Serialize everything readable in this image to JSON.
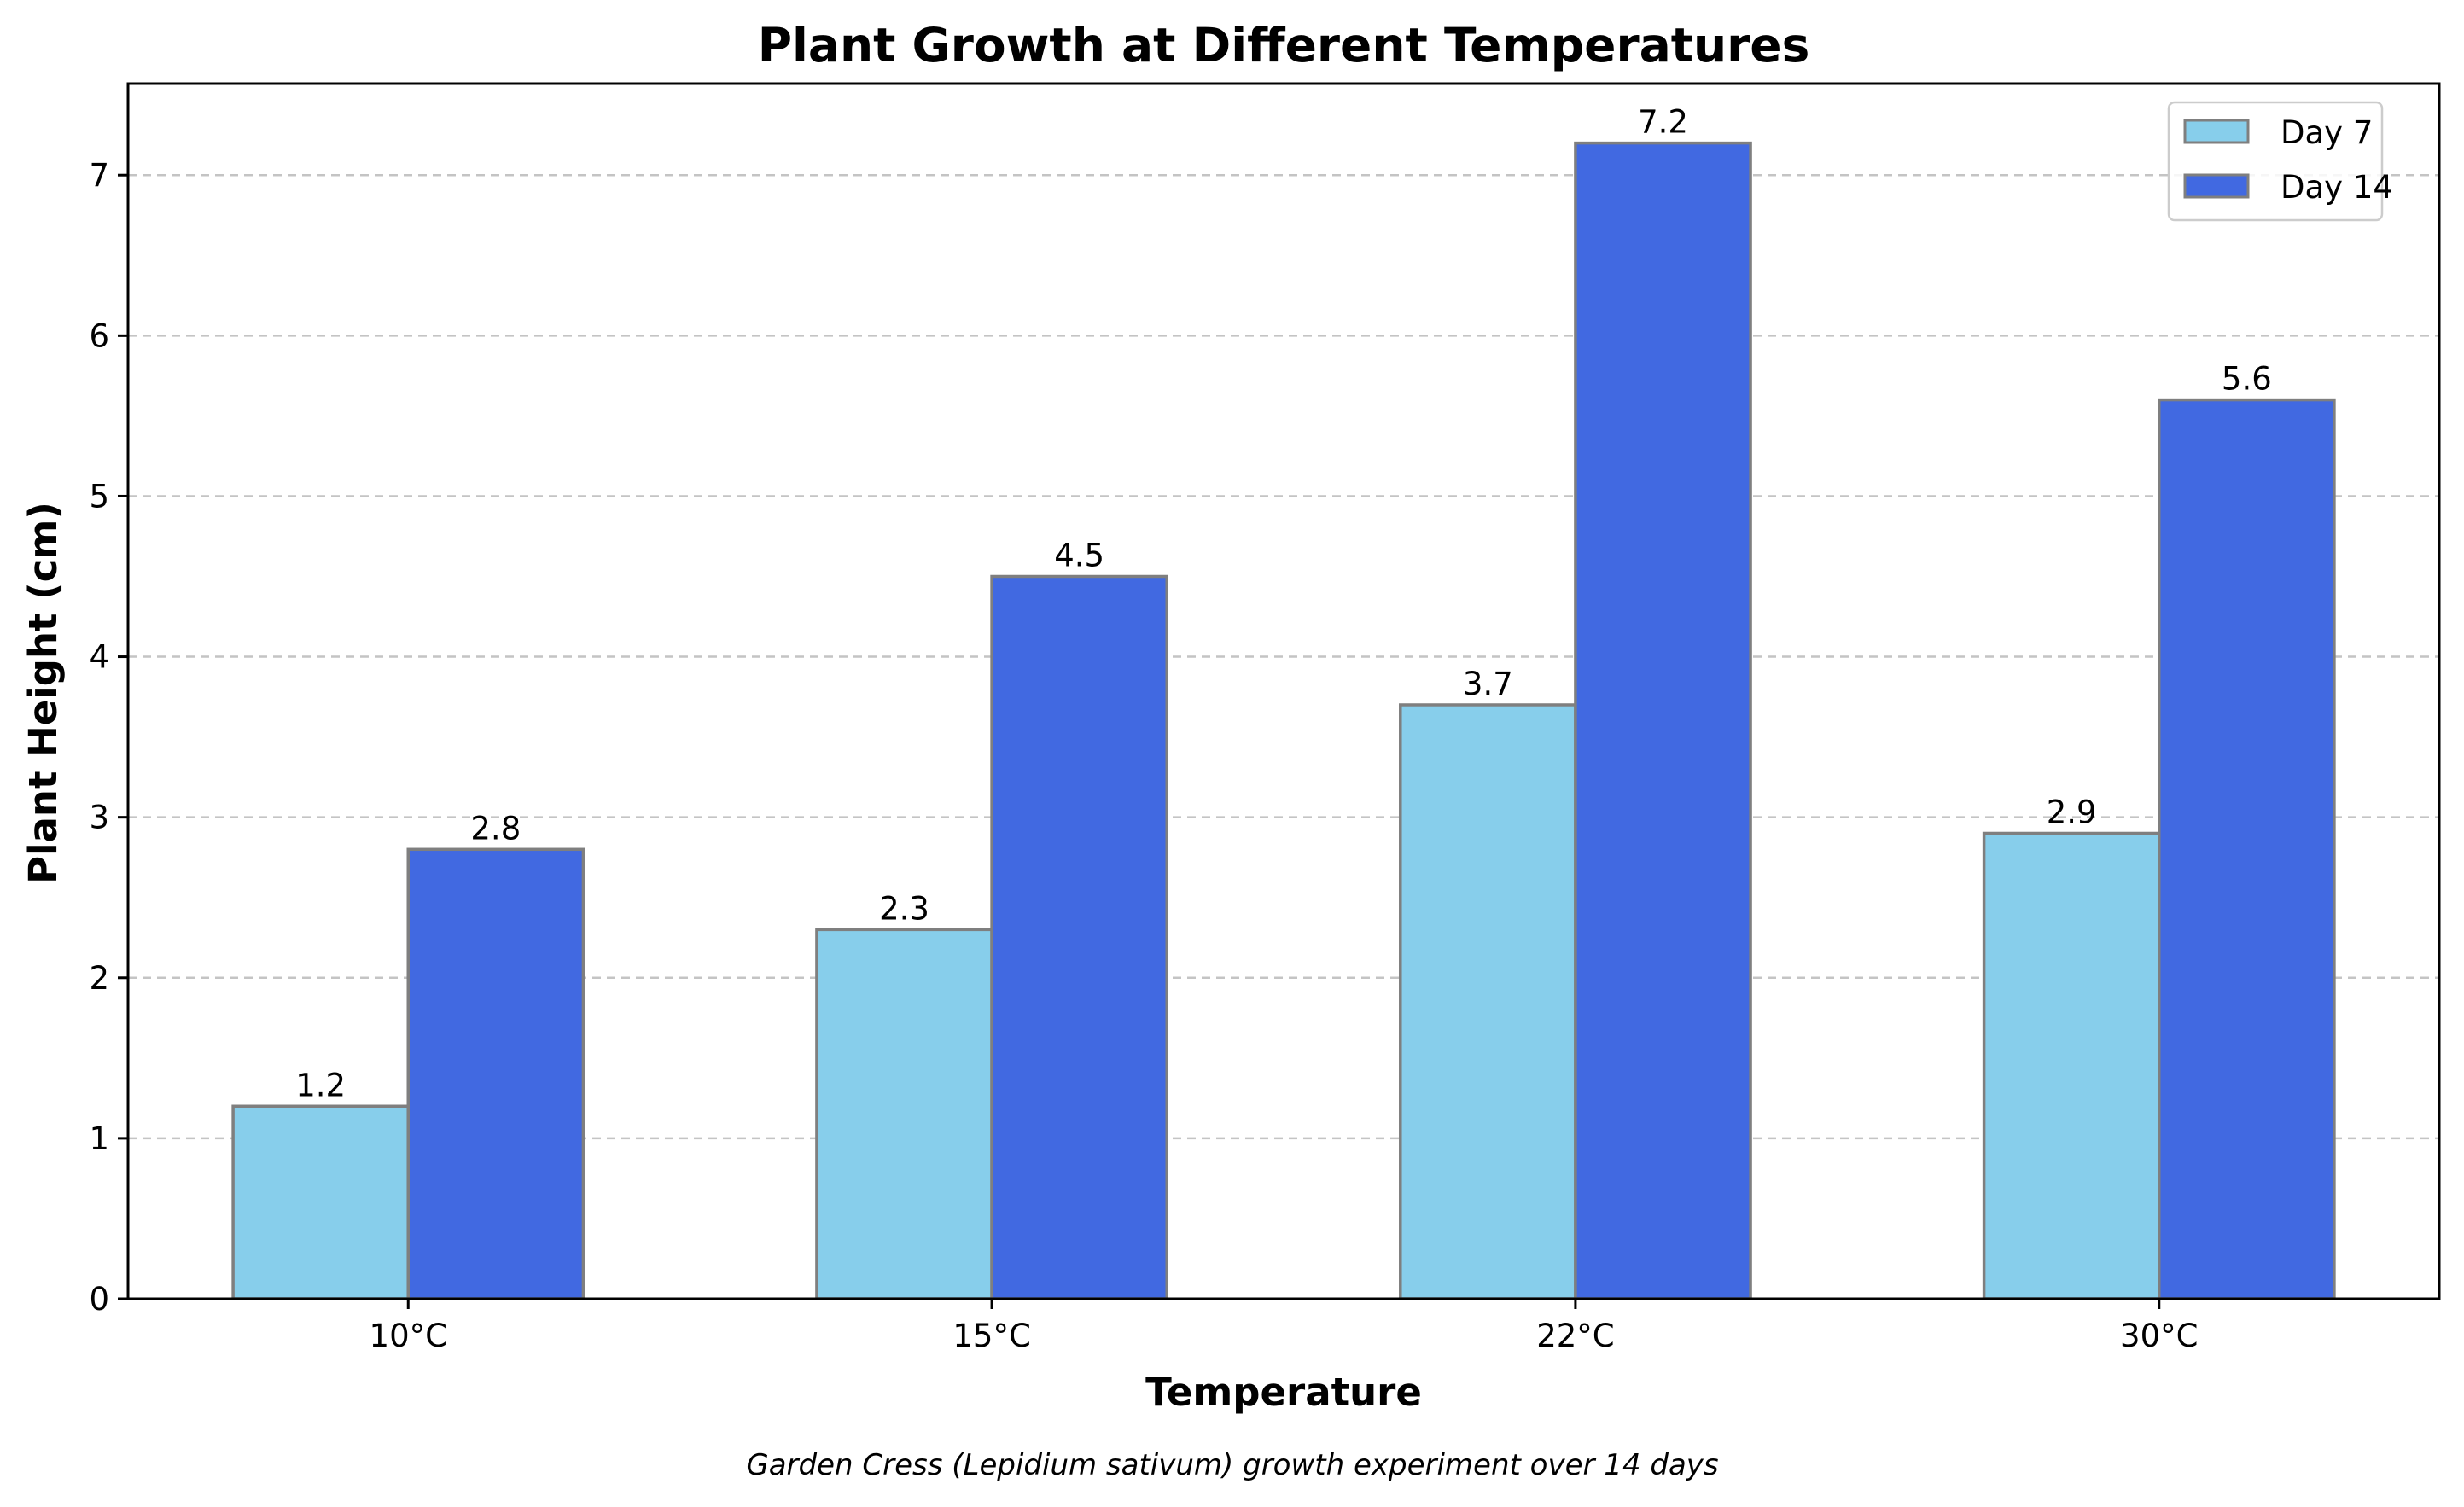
{
  "chart_data": {
    "type": "bar",
    "title": "Plant Growth at Different Temperatures",
    "xlabel": "Temperature",
    "ylabel": "Plant Height (cm)",
    "caption": "Garden Cress (Lepidium sativum) growth experiment over 14 days",
    "categories": [
      "10°C",
      "15°C",
      "22°C",
      "30°C"
    ],
    "series": [
      {
        "name": "Day 7",
        "color": "#87CEEB",
        "values": [
          1.2,
          2.3,
          3.7,
          2.9
        ],
        "value_labels": [
          "1.2",
          "2.3",
          "3.7",
          "2.9"
        ]
      },
      {
        "name": "Day 14",
        "color": "#4169E1",
        "values": [
          2.8,
          4.5,
          7.2,
          5.6
        ],
        "value_labels": [
          "2.8",
          "4.5",
          "7.2",
          "5.6"
        ]
      }
    ],
    "ylim": [
      0,
      7.57
    ],
    "yticks": [
      0,
      1,
      2,
      3,
      4,
      5,
      6,
      7
    ],
    "ytick_labels": [
      "0",
      "1",
      "2",
      "3",
      "4",
      "5",
      "6",
      "7"
    ],
    "grid": "y-dashed",
    "legend_position": "top-right",
    "edge_color": "#7f7f7f",
    "grid_color": "#c4c4c4"
  }
}
